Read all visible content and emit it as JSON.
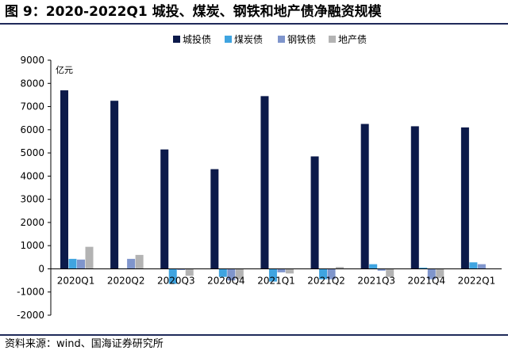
{
  "title": "图 9：2020-2022Q1 城投、煤炭、钢铁和地产债净融资规模",
  "source": "资料来源：wind、国海证券研究所",
  "chart_data": {
    "type": "bar",
    "unit_label": "亿元",
    "categories": [
      "2020Q1",
      "2020Q2",
      "2020Q3",
      "2020Q4",
      "2021Q1",
      "2021Q2",
      "2021Q3",
      "2021Q4",
      "2022Q1"
    ],
    "ylim": [
      -2000,
      9000
    ],
    "yticks": [
      "-2000",
      "-1000",
      "0",
      "1000",
      "2000",
      "3000",
      "4000",
      "5000",
      "6000",
      "7000",
      "8000",
      "9000"
    ],
    "legend_position": "top",
    "grid": false,
    "series": [
      {
        "name": "城投债",
        "color": "#0c1a4a",
        "values": [
          7700,
          7250,
          5150,
          4300,
          7450,
          4850,
          6250,
          6150,
          6100
        ]
      },
      {
        "name": "煤炭债",
        "color": "#3fa4e0",
        "values": [
          430,
          20,
          -650,
          -350,
          -550,
          -450,
          200,
          50,
          280
        ]
      },
      {
        "name": "钢铁债",
        "color": "#7f95cc",
        "values": [
          400,
          430,
          -50,
          -500,
          -150,
          -450,
          -80,
          -450,
          200
        ]
      },
      {
        "name": "地产债",
        "color": "#b3b3b3",
        "values": [
          950,
          600,
          -300,
          -450,
          -200,
          80,
          -350,
          -400,
          0
        ]
      }
    ]
  }
}
